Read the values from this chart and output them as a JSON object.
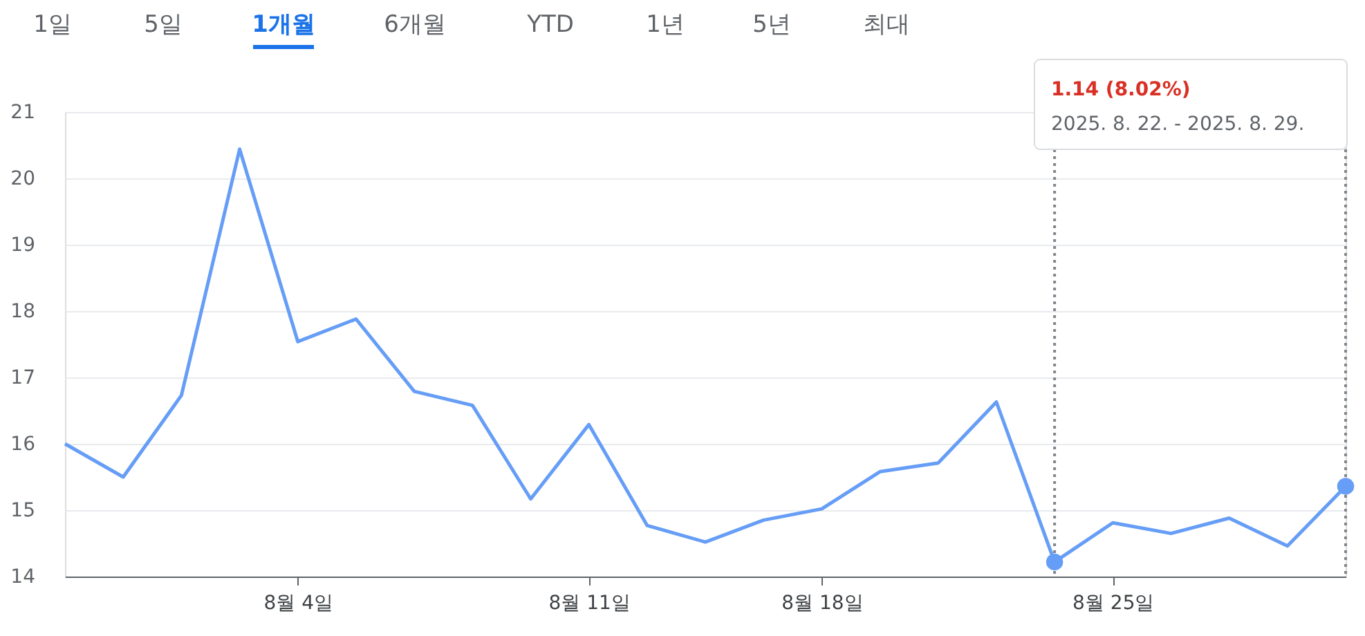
{
  "chart_data": {
    "type": "line",
    "categories": [
      null,
      null,
      null,
      null,
      "8월 4일",
      null,
      null,
      null,
      null,
      "8월 11일",
      null,
      null,
      null,
      "8월 18일",
      null,
      null,
      null,
      null,
      "8월 25일",
      null,
      null,
      null,
      null
    ],
    "series": [
      {
        "color": "#669df6",
        "values": [
          16.0,
          15.5,
          16.73,
          20.44,
          17.54,
          17.88,
          16.79,
          16.58,
          15.17,
          16.29,
          14.77,
          14.52,
          14.85,
          15.02,
          15.58,
          15.71,
          16.63,
          14.22,
          14.81,
          14.65,
          14.88,
          14.46,
          15.36
        ]
      }
    ],
    "ylim": [
      14,
      21
    ],
    "yticks": [
      14,
      15,
      16,
      17,
      18,
      19,
      20,
      21
    ],
    "grid": "y",
    "annotations": [
      "1일",
      "5일",
      "1개월",
      "6개월",
      "YTD",
      "1년",
      "5년",
      "최대",
      "1.14 (8.02%)",
      "2025. 8. 22. - 2025. 8. 29."
    ]
  }
}
